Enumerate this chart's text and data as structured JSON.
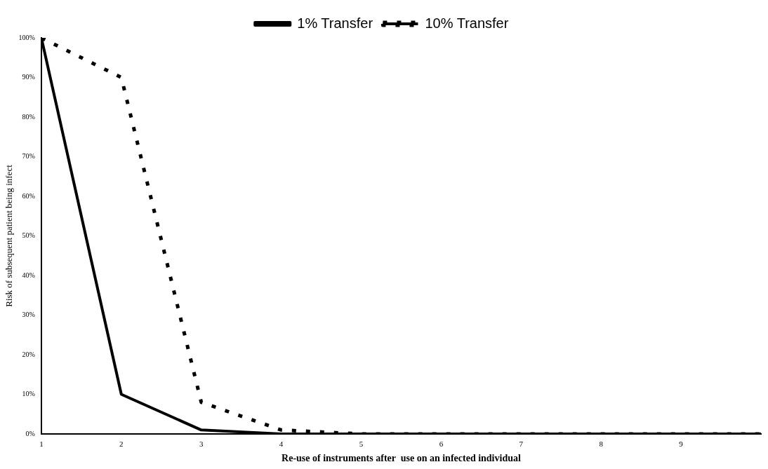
{
  "chart_data": {
    "type": "line",
    "xlabel": "Re-use of instruments after  use on an infected individual",
    "ylabel": "Risk of subsequent patient being infect",
    "x": [
      1,
      2,
      3,
      4,
      5,
      6,
      7,
      8,
      9,
      10
    ],
    "series": [
      {
        "name": "1% Transfer",
        "color": "#000000",
        "line_style": "solid",
        "values": [
          100,
          10,
          1,
          0,
          0,
          0,
          0,
          0,
          0,
          0
        ]
      },
      {
        "name": "10% Transfer",
        "color": "#000000",
        "line_style": "dotted",
        "values": [
          100,
          90,
          8,
          1,
          0,
          0,
          0,
          0,
          0,
          0
        ]
      }
    ],
    "xlim": [
      1,
      10
    ],
    "xticks": [
      1,
      2,
      3,
      4,
      5,
      6,
      7,
      8,
      9
    ],
    "ylim": [
      0,
      100
    ],
    "yticks": [
      {
        "value": 0,
        "label": "0%"
      },
      {
        "value": 10,
        "label": "10%"
      },
      {
        "value": 20,
        "label": "20%"
      },
      {
        "value": 30,
        "label": "30%"
      },
      {
        "value": 40,
        "label": "40%"
      },
      {
        "value": 50,
        "label": "50%"
      },
      {
        "value": 60,
        "label": "60%"
      },
      {
        "value": 70,
        "label": "70%"
      },
      {
        "value": 80,
        "label": "80%"
      },
      {
        "value": 90,
        "label": "90%"
      },
      {
        "value": 100,
        "label": "100%"
      }
    ],
    "grid": false,
    "legend": "top",
    "marker": "none"
  }
}
